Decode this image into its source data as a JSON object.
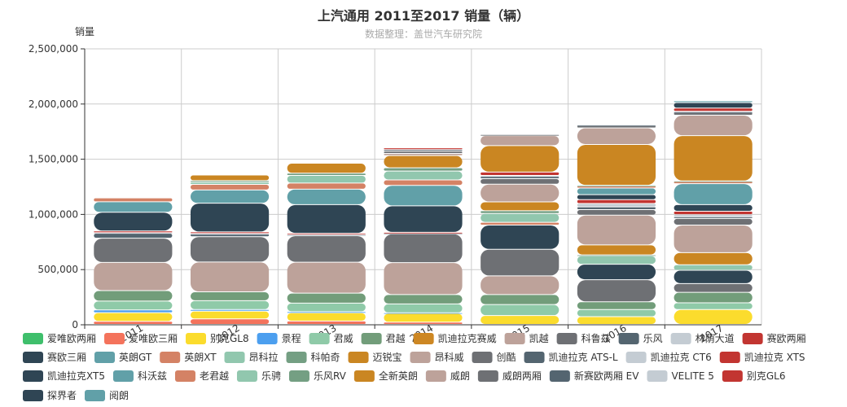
{
  "chart_data": {
    "type": "bar",
    "stacked": true,
    "title": "上汽通用 2011至2017 销量（辆）",
    "subtitle": "数据整理：盖世汽车研究院",
    "ylabel": "销量",
    "ylim": [
      0,
      2500000
    ],
    "yticks": [
      "0",
      "500,000",
      "1,000,000",
      "1,500,000",
      "2,000,000",
      "2,500,000"
    ],
    "categories": [
      "2011",
      "2012",
      "2013",
      "2014",
      "2015",
      "2016",
      "2017"
    ],
    "grid": true,
    "legend_position": "bottom",
    "series": [
      {
        "name": "爱唯欧两厢",
        "color": "#3fbf6c",
        "values": [
          0,
          0,
          0,
          0,
          0,
          0,
          0
        ]
      },
      {
        "name": "爱唯欧三厢",
        "color": "#f4735c",
        "values": [
          28000,
          50000,
          30000,
          20000,
          0,
          0,
          0
        ]
      },
      {
        "name": "别克GL8",
        "color": "#fbdc2d",
        "values": [
          78000,
          70000,
          75000,
          80000,
          80000,
          70000,
          135000
        ]
      },
      {
        "name": "景程",
        "color": "#4c9fef",
        "values": [
          25000,
          15000,
          10000,
          5000,
          0,
          0,
          0
        ]
      },
      {
        "name": "君威",
        "color": "#8fcaa8",
        "values": [
          80000,
          80000,
          78000,
          80000,
          100000,
          65000,
          60000
        ]
      },
      {
        "name": "君越",
        "color": "#729d7a",
        "values": [
          95000,
          80000,
          90000,
          85000,
          90000,
          70000,
          95000
        ]
      },
      {
        "name": "凯迪拉克赛威",
        "color": "#cd8723",
        "values": [
          0,
          0,
          0,
          0,
          0,
          0,
          0
        ]
      },
      {
        "name": "凯越",
        "color": "#bda29a",
        "values": [
          255000,
          270000,
          280000,
          290000,
          170000,
          0,
          0
        ]
      },
      {
        "name": "科鲁兹",
        "color": "#6e7074",
        "values": [
          220000,
          230000,
          240000,
          260000,
          240000,
          200000,
          80000
        ]
      },
      {
        "name": "乐风",
        "color": "#546570",
        "values": [
          45000,
          25000,
          10000,
          5000,
          0,
          0,
          0
        ]
      },
      {
        "name": "林荫大道",
        "color": "#c4ccd3",
        "values": [
          5000,
          3000,
          2000,
          1000,
          0,
          0,
          0
        ]
      },
      {
        "name": "赛欧两厢",
        "color": "#c23531",
        "values": [
          15000,
          15000,
          10000,
          8000,
          0,
          0,
          0
        ]
      },
      {
        "name": "赛欧三厢",
        "color": "#2f4554",
        "values": [
          170000,
          260000,
          260000,
          240000,
          220000,
          140000,
          120000
        ]
      },
      {
        "name": "英朗GT",
        "color": "#61a0a8",
        "values": [
          95000,
          120000,
          140000,
          185000,
          0,
          0,
          0
        ]
      },
      {
        "name": "英朗XT",
        "color": "#d48265",
        "values": [
          35000,
          50000,
          55000,
          50000,
          25000,
          0,
          0
        ]
      },
      {
        "name": "昂科拉",
        "color": "#91c7ae",
        "values": [
          0,
          20000,
          70000,
          80000,
          80000,
          75000,
          50000
        ]
      },
      {
        "name": "科帕奇",
        "color": "#749f83",
        "values": [
          0,
          15000,
          20000,
          30000,
          25000,
          10000,
          0
        ]
      },
      {
        "name": "迈锐宝",
        "color": "#ca8622",
        "values": [
          0,
          50000,
          90000,
          110000,
          80000,
          90000,
          110000
        ]
      },
      {
        "name": "昂科威",
        "color": "#bda29a",
        "values": [
          0,
          0,
          0,
          20000,
          160000,
          270000,
          250000
        ]
      },
      {
        "name": "创酷",
        "color": "#6e7074",
        "values": [
          0,
          0,
          0,
          20000,
          50000,
          50000,
          60000
        ]
      },
      {
        "name": "凯迪拉克 ATS-L",
        "color": "#546570",
        "values": [
          0,
          0,
          0,
          15000,
          20000,
          25000,
          15000
        ]
      },
      {
        "name": "凯迪拉克 CT6",
        "color": "#c4ccd3",
        "values": [
          0,
          0,
          0,
          0,
          10000,
          30000,
          20000
        ]
      },
      {
        "name": "凯迪拉克 XTS",
        "color": "#c23531",
        "values": [
          0,
          0,
          0,
          15000,
          30000,
          35000,
          30000
        ]
      },
      {
        "name": "凯迪拉克XT5",
        "color": "#2f4554",
        "values": [
          0,
          0,
          0,
          0,
          0,
          45000,
          60000
        ]
      },
      {
        "name": "科沃兹",
        "color": "#61a0a8",
        "values": [
          0,
          0,
          0,
          0,
          0,
          60000,
          190000
        ]
      },
      {
        "name": "老君越",
        "color": "#d48265",
        "values": [
          0,
          0,
          0,
          0,
          0,
          20000,
          20000
        ]
      },
      {
        "name": "乐骋",
        "color": "#91c7ae",
        "values": [
          0,
          0,
          0,
          0,
          0,
          5000,
          5000
        ]
      },
      {
        "name": "乐风RV",
        "color": "#749f83",
        "values": [
          0,
          0,
          0,
          0,
          0,
          0,
          0
        ]
      },
      {
        "name": "全新英朗",
        "color": "#ca8622",
        "values": [
          0,
          0,
          0,
          0,
          240000,
          370000,
          410000
        ]
      },
      {
        "name": "威朗",
        "color": "#bda29a",
        "values": [
          0,
          0,
          0,
          0,
          90000,
          150000,
          185000
        ]
      },
      {
        "name": "威朗两厢",
        "color": "#6e7074",
        "values": [
          0,
          0,
          0,
          0,
          10000,
          20000,
          25000
        ]
      },
      {
        "name": "新赛欧两厢 EV",
        "color": "#546570",
        "values": [
          0,
          0,
          0,
          0,
          0,
          5000,
          5000
        ]
      },
      {
        "name": "VELITE 5",
        "color": "#c4ccd3",
        "values": [
          0,
          0,
          0,
          0,
          0,
          0,
          5000
        ]
      },
      {
        "name": "别克GL6",
        "color": "#c23531",
        "values": [
          0,
          0,
          0,
          0,
          0,
          0,
          30000
        ]
      },
      {
        "name": "探界者",
        "color": "#2f4554",
        "values": [
          0,
          0,
          0,
          0,
          0,
          0,
          50000
        ]
      },
      {
        "name": "阅朗",
        "color": "#61a0a8",
        "values": [
          0,
          0,
          0,
          0,
          0,
          0,
          15000
        ]
      }
    ]
  }
}
